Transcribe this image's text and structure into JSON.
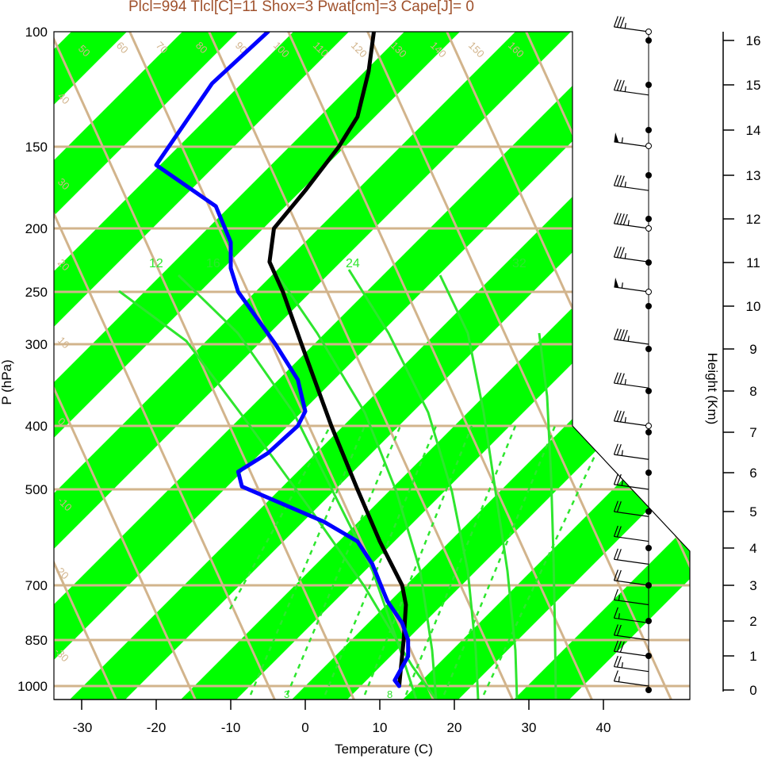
{
  "chart_data": {
    "type": "line",
    "title": "Plcl=994 Tlcl[C]=11 Shox=3 Pwat[cm]=3 Cape[J]= 0",
    "xlabel": "Temperature (C)",
    "ylabel": "P (hPa)",
    "y2label": "Height (Km)",
    "x_ticks": [
      "-30",
      "-20",
      "-10",
      "0",
      "10",
      "20",
      "30",
      "40"
    ],
    "pressure_ticks": [
      "100",
      "150",
      "200",
      "250",
      "300",
      "400",
      "500",
      "700",
      "850",
      "1000"
    ],
    "height_ticks": [
      "0",
      "1",
      "2",
      "3",
      "4",
      "5",
      "6",
      "7",
      "8",
      "9",
      "10",
      "11",
      "12",
      "13",
      "14",
      "15",
      "16"
    ],
    "isotherm_labels": [
      "50",
      "60",
      "70",
      "80",
      "90",
      "100",
      "110",
      "120",
      "130",
      "140",
      "150",
      "160"
    ],
    "dry_adiabat_labels": [
      "40",
      "30",
      "20",
      "10",
      "0",
      "-10",
      "-20",
      "-30"
    ],
    "moist_adiabat_labels": [
      "30",
      "20",
      "10",
      "0",
      "10",
      "20",
      "30"
    ],
    "theta_e_labels": [
      "12",
      "16",
      "24",
      "32"
    ],
    "mixing_ratio_labels": [
      "3",
      "8"
    ],
    "series": [
      {
        "color": "#000000",
        "points": [
          {
            "p": 100,
            "x": 9.2
          },
          {
            "p": 115,
            "x": 8.5
          },
          {
            "p": 135,
            "x": 7.0
          },
          {
            "p": 150,
            "x": 4.5
          },
          {
            "p": 175,
            "x": 0.0
          },
          {
            "p": 200,
            "x": -4.2
          },
          {
            "p": 225,
            "x": -4.8
          },
          {
            "p": 250,
            "x": -3.0
          },
          {
            "p": 300,
            "x": -0.5
          },
          {
            "p": 400,
            "x": 3.5
          },
          {
            "p": 500,
            "x": 7.0
          },
          {
            "p": 600,
            "x": 10.0
          },
          {
            "p": 700,
            "x": 13.0
          },
          {
            "p": 750,
            "x": 13.5
          },
          {
            "p": 850,
            "x": 13.2
          },
          {
            "p": 1000,
            "x": 12.6
          }
        ]
      },
      {
        "color": "#0000ff",
        "points": [
          {
            "p": 100,
            "x": -5.0
          },
          {
            "p": 120,
            "x": -12.5
          },
          {
            "p": 160,
            "x": -20.0
          },
          {
            "p": 185,
            "x": -12.0
          },
          {
            "p": 210,
            "x": -10.0
          },
          {
            "p": 230,
            "x": -10.0
          },
          {
            "p": 250,
            "x": -9.0
          },
          {
            "p": 300,
            "x": -4.0
          },
          {
            "p": 340,
            "x": -1.0
          },
          {
            "p": 380,
            "x": 0.0
          },
          {
            "p": 400,
            "x": -1.0
          },
          {
            "p": 440,
            "x": -5.0
          },
          {
            "p": 470,
            "x": -9.0
          },
          {
            "p": 495,
            "x": -8.5
          },
          {
            "p": 560,
            "x": 2.5
          },
          {
            "p": 600,
            "x": 7.0
          },
          {
            "p": 650,
            "x": 9.0
          },
          {
            "p": 740,
            "x": 11.0
          },
          {
            "p": 800,
            "x": 13.0
          },
          {
            "p": 850,
            "x": 13.8
          },
          {
            "p": 900,
            "x": 13.8
          },
          {
            "p": 980,
            "x": 12.0
          },
          {
            "p": 1000,
            "x": 12.6
          }
        ]
      }
    ],
    "wind_barbs": [
      {
        "p": 100,
        "speed_kt": 35,
        "dir": 290
      },
      {
        "p": 125,
        "speed_kt": 35,
        "dir": 290
      },
      {
        "p": 150,
        "speed_kt": 55,
        "dir": 290
      },
      {
        "p": 175,
        "speed_kt": 35,
        "dir": 290
      },
      {
        "p": 200,
        "speed_kt": 45,
        "dir": 290
      },
      {
        "p": 225,
        "speed_kt": 35,
        "dir": 290
      },
      {
        "p": 250,
        "speed_kt": 55,
        "dir": 290
      },
      {
        "p": 300,
        "speed_kt": 45,
        "dir": 290
      },
      {
        "p": 350,
        "speed_kt": 35,
        "dir": 290
      },
      {
        "p": 400,
        "speed_kt": 35,
        "dir": 290
      },
      {
        "p": 450,
        "speed_kt": 25,
        "dir": 290
      },
      {
        "p": 500,
        "speed_kt": 25,
        "dir": 290
      },
      {
        "p": 550,
        "speed_kt": 20,
        "dir": 290
      },
      {
        "p": 600,
        "speed_kt": 20,
        "dir": 290
      },
      {
        "p": 650,
        "speed_kt": 20,
        "dir": 290
      },
      {
        "p": 700,
        "speed_kt": 20,
        "dir": 290
      },
      {
        "p": 750,
        "speed_kt": 15,
        "dir": 290
      },
      {
        "p": 800,
        "speed_kt": 15,
        "dir": 290
      },
      {
        "p": 850,
        "speed_kt": 20,
        "dir": 290
      },
      {
        "p": 900,
        "speed_kt": 30,
        "dir": 290
      },
      {
        "p": 950,
        "speed_kt": 25,
        "dir": 290
      },
      {
        "p": 1000,
        "speed_kt": 15,
        "dir": 290
      }
    ],
    "colors": {
      "band": "#00ff00",
      "grid": "#d2b48c",
      "theta_e": "#2ee62e",
      "mixing_ratio": "#2ee62e",
      "temperature": "#000000",
      "dewpoint": "#0000ff",
      "title": "#a0522d"
    }
  }
}
